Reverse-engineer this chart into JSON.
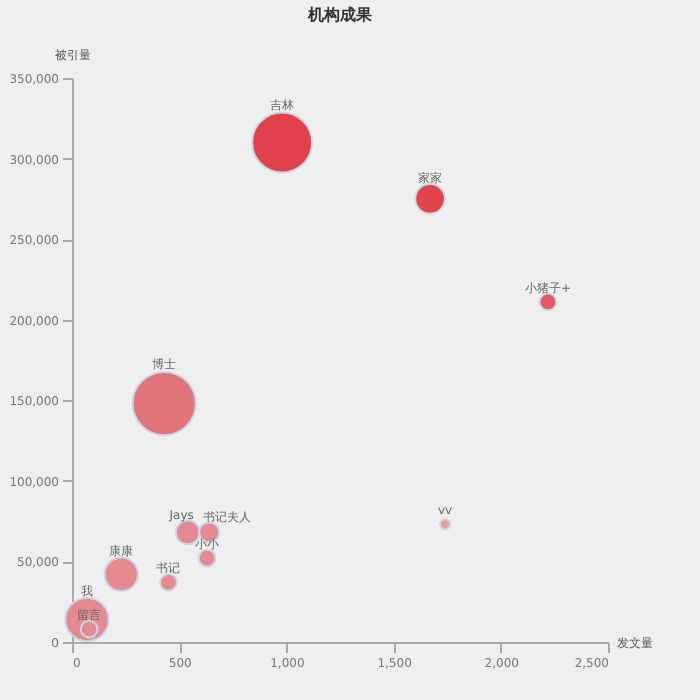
{
  "chart_data": {
    "type": "bubble",
    "title": "机构成果",
    "xlabel": "发文量",
    "ylabel": "被引量",
    "x": [
      980,
      1670,
      2220,
      430,
      540,
      640,
      630,
      450,
      230,
      70,
      80,
      1740
    ],
    "values": [
      310000,
      275000,
      211000,
      148000,
      68000,
      68000,
      52000,
      37000,
      42000,
      14000,
      8000,
      73000
    ],
    "sizes": [
      0.9,
      0.22,
      0.07,
      1,
      0.14,
      0.1,
      0.07,
      0.07,
      0.28,
      0.47,
      0.07,
      0.025
    ],
    "colors": [
      "#e0414a",
      "#e0444c",
      "#e35a62",
      "#e2757b",
      "#e58a90",
      "#e58a90",
      "#e58a90",
      "#e58a90",
      "#e58a90",
      "#e58a90",
      "#e58a90",
      "#ee9aa0"
    ],
    "annotations": [
      {
        "text": "吉林",
        "x": 980,
        "y": 310000
      },
      {
        "text": "家家",
        "x": 1670,
        "y": 275000
      },
      {
        "text": "小猪子+",
        "x": 2220,
        "y": 211000
      },
      {
        "text": "博士",
        "x": 430,
        "y": 148000
      },
      {
        "text": "Jays",
        "x": 540,
        "y": 68000
      },
      {
        "text": "书记夫人",
        "x": 640,
        "y": 68000
      },
      {
        "text": "小小",
        "x": 630,
        "y": 52000
      },
      {
        "text": "书记",
        "x": 450,
        "y": 37000
      },
      {
        "text": "康康",
        "x": 230,
        "y": 42000
      },
      {
        "text": "我",
        "x": 70,
        "y": 14000
      },
      {
        "text": "留言",
        "x": 80,
        "y": 8000
      },
      {
        "text": "vv",
        "x": 1740,
        "y": 73000
      }
    ],
    "xlim": [
      0,
      2500
    ],
    "xticks": [
      0,
      500,
      {
        "value": 1000,
        "label": "1,000"
      },
      {
        "value": 1500,
        "label": "1,500"
      },
      {
        "value": 2000,
        "label": "2,000"
      },
      {
        "value": 2500,
        "label": "2,500"
      }
    ],
    "ylim": [
      0,
      350000
    ],
    "yticks": [
      0,
      {
        "value": 50000,
        "label": "50,000"
      },
      {
        "value": 100000,
        "label": "100,000"
      },
      {
        "value": 150000,
        "label": "150,000"
      },
      {
        "value": 200000,
        "label": "200,000"
      },
      {
        "value": 250000,
        "label": "250,000"
      },
      {
        "value": 300000,
        "label": "300,000"
      },
      {
        "value": 350000,
        "label": "350,000"
      }
    ],
    "grid": false,
    "legend": false
  }
}
